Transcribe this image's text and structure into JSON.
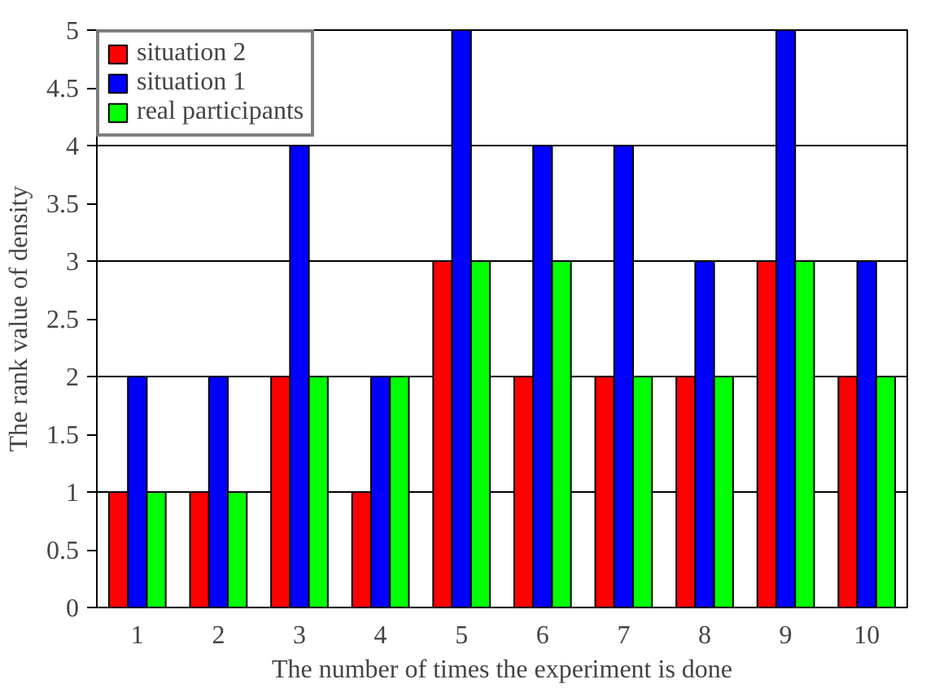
{
  "chart_data": {
    "type": "bar",
    "xlabel": "The number of times the experiment is done",
    "ylabel": "The rank value of density",
    "categories": [
      "1",
      "2",
      "3",
      "4",
      "5",
      "6",
      "7",
      "8",
      "9",
      "10"
    ],
    "series": [
      {
        "name": "situation 2",
        "color": "#ff0000",
        "values": [
          1,
          1,
          2,
          1,
          3,
          2,
          2,
          2,
          3,
          2
        ]
      },
      {
        "name": "situation 1",
        "color": "#0000ff",
        "values": [
          2,
          2,
          4,
          2,
          5,
          4,
          4,
          3,
          5,
          3
        ]
      },
      {
        "name": "real participants",
        "color": "#00ff00",
        "values": [
          1,
          1,
          2,
          2,
          3,
          3,
          2,
          2,
          3,
          2
        ]
      }
    ],
    "ylim": [
      0,
      5
    ],
    "yticks": [
      0,
      0.5,
      1,
      1.5,
      2,
      2.5,
      3,
      3.5,
      4,
      4.5,
      5
    ],
    "grid": "y",
    "legend": "top left"
  }
}
